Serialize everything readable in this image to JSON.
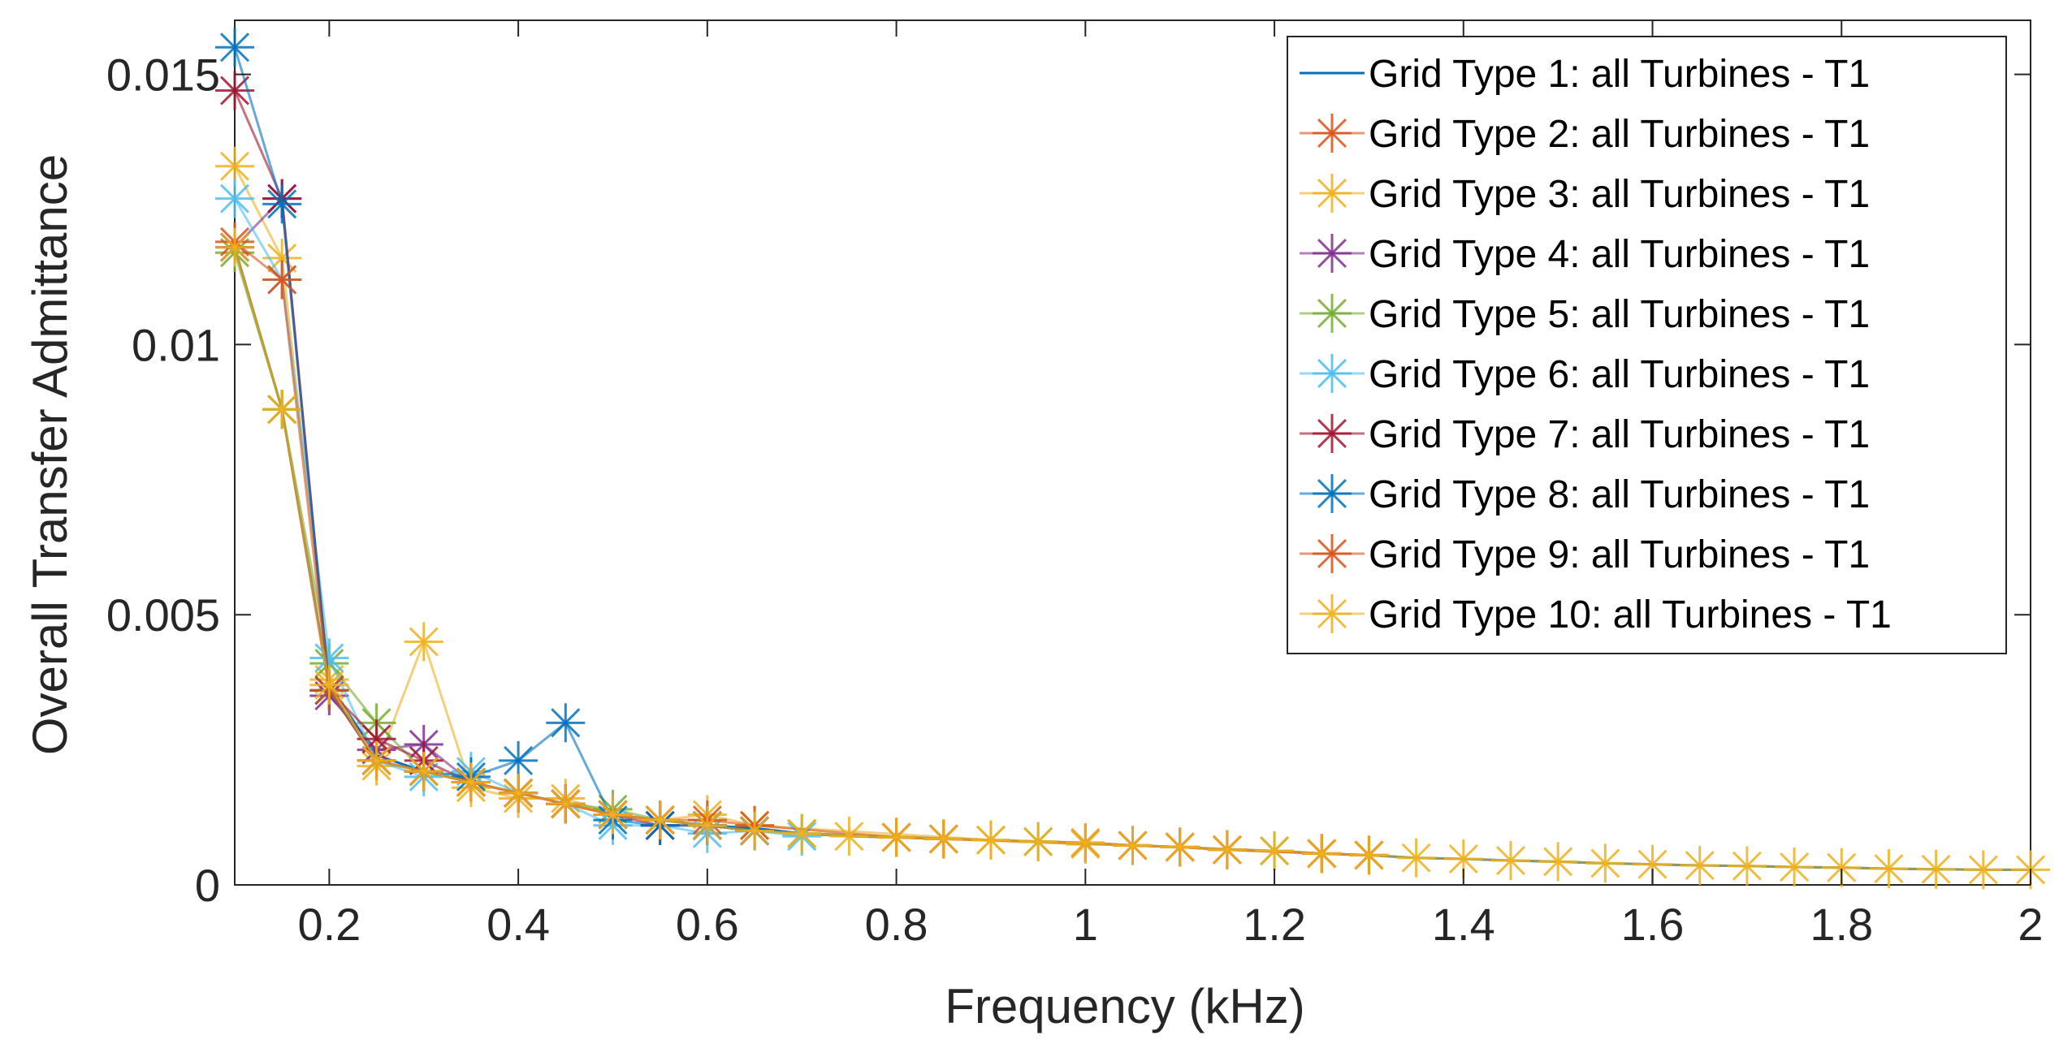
{
  "chart_data": {
    "type": "line",
    "title": "",
    "xlabel": "Frequency (kHz)",
    "ylabel": "Overall Transfer Admittance",
    "xlim": [
      0.1,
      2.0
    ],
    "ylim": [
      0,
      0.016
    ],
    "xticks": [
      0.2,
      0.4,
      0.6,
      0.8,
      1.0,
      1.2,
      1.4,
      1.6,
      1.8,
      2.0
    ],
    "xtick_labels": [
      "0.2",
      "0.4",
      "0.6",
      "0.8",
      "1",
      "1.2",
      "1.4",
      "1.6",
      "1.8",
      "2"
    ],
    "yticks": [
      0,
      0.005,
      0.01,
      0.015
    ],
    "ytick_labels": [
      "0",
      "0.005",
      "0.01",
      "0.015"
    ],
    "grid": false,
    "legend_position": "top-right",
    "series": [
      {
        "name": "Grid Type 1: all Turbines - T1",
        "color": "#0072BD",
        "style": "line",
        "x": [
          0.1,
          0.15,
          0.2,
          0.25,
          0.3,
          0.35,
          0.4,
          0.45,
          0.5,
          0.55,
          0.6,
          0.65,
          0.7,
          0.75,
          0.8,
          0.85,
          0.9,
          0.95,
          1.0,
          1.05,
          1.1,
          1.15,
          1.2,
          1.25,
          1.3,
          1.35,
          1.4,
          1.45,
          1.5,
          1.55,
          1.6,
          1.65,
          1.7,
          1.75,
          1.8,
          1.85,
          1.9,
          1.95,
          2.0
        ],
        "values": [
          0.0118,
          0.0088,
          0.0037,
          0.0024,
          0.0021,
          0.0019,
          0.0017,
          0.0015,
          0.0013,
          0.0012,
          0.0011,
          0.00105,
          0.00095,
          0.0009,
          0.00088,
          0.00085,
          0.00083,
          0.0008,
          0.00078,
          0.00073,
          0.0007,
          0.00065,
          0.00063,
          0.00058,
          0.00055,
          0.0005,
          0.00048,
          0.00045,
          0.00043,
          0.0004,
          0.00038,
          0.00036,
          0.00035,
          0.00033,
          0.00032,
          0.0003,
          0.00029,
          0.00028,
          0.00028
        ]
      },
      {
        "name": "Grid Type 2: all Turbines - T1",
        "color": "#D95319",
        "style": "markers",
        "x": [
          0.1,
          0.15,
          0.2,
          0.25,
          0.3,
          0.35,
          0.4,
          0.45,
          0.5,
          0.55,
          0.6,
          0.65,
          0.8,
          0.85,
          1.05,
          1.1,
          1.15,
          1.25,
          1.3
        ],
        "values": [
          0.0118,
          0.0088,
          0.0036,
          0.0023,
          0.0021,
          0.0019,
          0.0017,
          0.0015,
          0.0013,
          0.0012,
          0.0011,
          0.001,
          0.00088,
          0.00085,
          0.00073,
          0.0007,
          0.00065,
          0.00058,
          0.00055
        ]
      },
      {
        "name": "Grid Type 3: all Turbines - T1",
        "color": "#EDB120",
        "style": "markers",
        "x": [
          0.1,
          0.15,
          0.2,
          0.25,
          0.3,
          0.35,
          0.4,
          0.45,
          0.5,
          0.55,
          0.6,
          0.65,
          0.9,
          1.0
        ],
        "values": [
          0.0133,
          0.0116,
          0.0038,
          0.0022,
          0.0045,
          0.0018,
          0.0016,
          0.0016,
          0.0013,
          0.0012,
          0.0013,
          0.0011,
          0.00083,
          0.00075
        ]
      },
      {
        "name": "Grid Type 4: all Turbines - T1",
        "color": "#7E2F8E",
        "style": "markers",
        "x": [
          0.1,
          0.15,
          0.2,
          0.25,
          0.3,
          0.35,
          0.4,
          0.45,
          0.5,
          0.55,
          0.6,
          0.65
        ],
        "values": [
          0.0118,
          0.0127,
          0.0035,
          0.0025,
          0.0026,
          0.0019,
          0.0017,
          0.0015,
          0.0013,
          0.0012,
          0.0011,
          0.001
        ]
      },
      {
        "name": "Grid Type 5: all Turbines - T1",
        "color": "#77AC30",
        "style": "markers",
        "x": [
          0.1,
          0.15,
          0.2,
          0.25,
          0.3,
          0.35,
          0.4,
          0.45,
          0.5,
          0.55,
          0.6,
          0.65,
          0.7,
          0.95,
          1.2
        ],
        "values": [
          0.0117,
          0.0088,
          0.0041,
          0.003,
          0.0021,
          0.0019,
          0.0017,
          0.0015,
          0.0014,
          0.0012,
          0.0011,
          0.001,
          0.00095,
          0.0008,
          0.00063
        ]
      },
      {
        "name": "Grid Type 6: all Turbines - T1",
        "color": "#4DBEEE",
        "style": "markers",
        "x": [
          0.1,
          0.15,
          0.2,
          0.25,
          0.3,
          0.35,
          0.4,
          0.45,
          0.5,
          0.55,
          0.6,
          0.65,
          0.7
        ],
        "values": [
          0.0127,
          0.0112,
          0.0042,
          0.0023,
          0.002,
          0.0021,
          0.0017,
          0.0015,
          0.0011,
          0.0011,
          0.00095,
          0.001,
          0.0009
        ]
      },
      {
        "name": "Grid Type 7: all Turbines - T1",
        "color": "#A2142F",
        "style": "markers",
        "x": [
          0.1,
          0.15,
          0.2,
          0.25,
          0.3,
          0.35,
          0.4,
          0.45,
          0.5,
          0.55,
          0.6,
          0.65
        ],
        "values": [
          0.0147,
          0.0127,
          0.0036,
          0.0027,
          0.0023,
          0.0019,
          0.0017,
          0.0015,
          0.0013,
          0.0011,
          0.0011,
          0.001
        ]
      },
      {
        "name": "Grid Type 8: all Turbines - T1",
        "color": "#0072BD",
        "style": "markers",
        "x": [
          0.1,
          0.15,
          0.2,
          0.25,
          0.3,
          0.35,
          0.4,
          0.45,
          0.5,
          0.55,
          0.6,
          0.65
        ],
        "values": [
          0.0155,
          0.0126,
          0.0036,
          0.0023,
          0.0021,
          0.002,
          0.0023,
          0.003,
          0.0012,
          0.0011,
          0.0011,
          0.001
        ]
      },
      {
        "name": "Grid Type 9: all Turbines - T1",
        "color": "#D95319",
        "style": "markers",
        "x": [
          0.1,
          0.15,
          0.2,
          0.25,
          0.3,
          0.35,
          0.4,
          0.45,
          0.5,
          0.55,
          0.6,
          0.65,
          0.8,
          0.85,
          1.0,
          1.05,
          1.1,
          1.15,
          1.25,
          1.3
        ],
        "values": [
          0.0119,
          0.0112,
          0.0036,
          0.0023,
          0.0021,
          0.0019,
          0.0017,
          0.0015,
          0.0013,
          0.0012,
          0.0012,
          0.0011,
          0.00088,
          0.00085,
          0.00078,
          0.00073,
          0.0007,
          0.00065,
          0.00058,
          0.00055
        ]
      },
      {
        "name": "Grid Type 10: all Turbines - T1",
        "color": "#EDB120",
        "style": "markers",
        "x": [
          0.1,
          0.15,
          0.2,
          0.25,
          0.3,
          0.35,
          0.4,
          0.45,
          0.5,
          0.55,
          0.6,
          0.65,
          0.7,
          0.75,
          0.8,
          0.85,
          0.9,
          0.95,
          1.0,
          1.05,
          1.1,
          1.15,
          1.2,
          1.25,
          1.3,
          1.35,
          1.4,
          1.45,
          1.5,
          1.55,
          1.6,
          1.65,
          1.7,
          1.75,
          1.8,
          1.85,
          1.9,
          1.95,
          2.0
        ],
        "values": [
          0.0118,
          0.0088,
          0.0037,
          0.0023,
          0.0021,
          0.0019,
          0.0017,
          0.0015,
          0.0013,
          0.0012,
          0.0011,
          0.001,
          0.00095,
          0.0009,
          0.00088,
          0.00085,
          0.00083,
          0.0008,
          0.00078,
          0.00073,
          0.0007,
          0.00065,
          0.00063,
          0.00058,
          0.00055,
          0.0005,
          0.00048,
          0.00045,
          0.00043,
          0.0004,
          0.00038,
          0.00036,
          0.00035,
          0.00033,
          0.00032,
          0.0003,
          0.00029,
          0.00028,
          0.00028
        ]
      }
    ]
  }
}
